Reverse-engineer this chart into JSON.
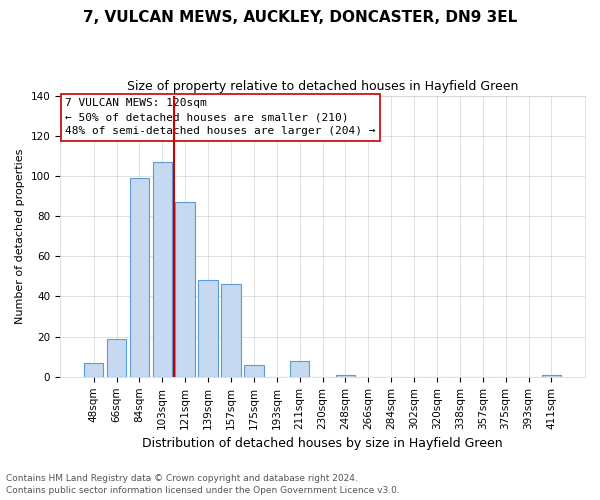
{
  "title": "7, VULCAN MEWS, AUCKLEY, DONCASTER, DN9 3EL",
  "subtitle": "Size of property relative to detached houses in Hayfield Green",
  "xlabel": "Distribution of detached houses by size in Hayfield Green",
  "ylabel": "Number of detached properties",
  "bar_labels": [
    "48sqm",
    "66sqm",
    "84sqm",
    "103sqm",
    "121sqm",
    "139sqm",
    "157sqm",
    "175sqm",
    "193sqm",
    "211sqm",
    "230sqm",
    "248sqm",
    "266sqm",
    "284sqm",
    "302sqm",
    "320sqm",
    "338sqm",
    "357sqm",
    "375sqm",
    "393sqm",
    "411sqm"
  ],
  "bar_values": [
    7,
    19,
    99,
    107,
    87,
    48,
    46,
    6,
    0,
    8,
    0,
    1,
    0,
    0,
    0,
    0,
    0,
    0,
    0,
    0,
    1
  ],
  "bar_color": "#c6d9f0",
  "bar_edge_color": "#5b9bd5",
  "vline_color": "#cc0000",
  "vline_bar_index": 4,
  "ylim": [
    0,
    140
  ],
  "yticks": [
    0,
    20,
    40,
    60,
    80,
    100,
    120,
    140
  ],
  "annotation_title": "7 VULCAN MEWS: 120sqm",
  "annotation_line1": "← 50% of detached houses are smaller (210)",
  "annotation_line2": "48% of semi-detached houses are larger (204) →",
  "annotation_box_color": "#ffffff",
  "annotation_box_edge": "#cc0000",
  "footer1": "Contains HM Land Registry data © Crown copyright and database right 2024.",
  "footer2": "Contains public sector information licensed under the Open Government Licence v3.0.",
  "bg_color": "#ffffff",
  "title_fontsize": 11,
  "subtitle_fontsize": 9,
  "xlabel_fontsize": 9,
  "ylabel_fontsize": 8,
  "tick_fontsize": 7.5,
  "footer_fontsize": 6.5,
  "ann_fontsize": 8
}
